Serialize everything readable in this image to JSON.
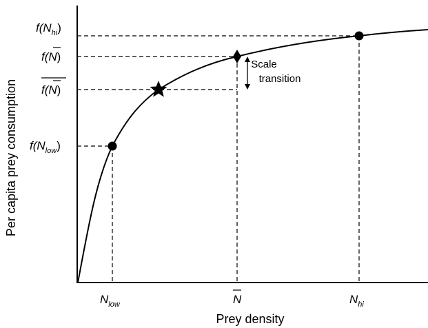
{
  "axes": {
    "xlabel": "Prey density",
    "ylabel": "Per capita prey consumption"
  },
  "x_ticks": {
    "low": {
      "var": "N",
      "sub": "low"
    },
    "mean": {
      "var": "N",
      "sub": ""
    },
    "hi": {
      "var": "N",
      "sub": "hi"
    }
  },
  "y_ticks": {
    "f_hi": {
      "fn": "f(",
      "var": "N",
      "sub": "hi",
      "close": ")"
    },
    "f_mean": {
      "fn": "f(",
      "var": "N",
      "sub": "",
      "close": ")"
    },
    "mean_f": {
      "fn": "f(",
      "var": "N",
      "sub": "",
      "close": ")"
    },
    "f_low": {
      "fn": "f(",
      "var": "N",
      "sub": "low",
      "close": ")"
    }
  },
  "annotation": {
    "line1": "Scale",
    "line2": "transition"
  },
  "markers": {
    "low_point": "circle",
    "mean_of_function": "star",
    "function_of_mean": "diamond",
    "hi_point": "circle"
  },
  "colors": {
    "ink": "#000000",
    "background": "#ffffff"
  }
}
